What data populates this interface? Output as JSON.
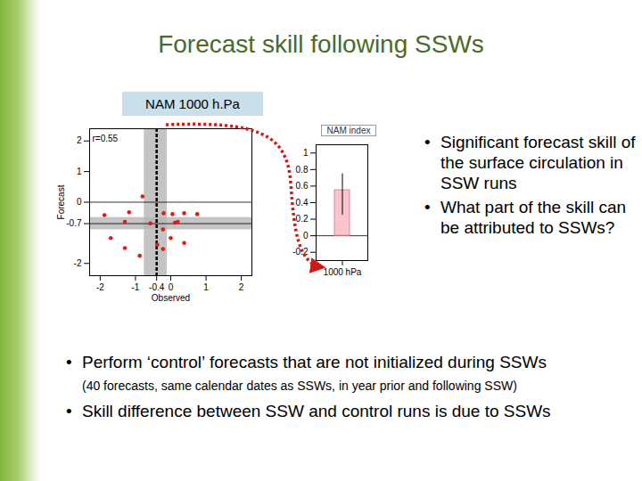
{
  "title": "Forecast skill following SSWs",
  "panel_label": "NAM 1000 h.Pa",
  "bullets_right": [
    "Significant forecast skill of the surface circulation in SSW runs",
    "What part of the skill can be attributed to SSWs?"
  ],
  "bullets_bottom": [
    {
      "text": "Perform ‘control’ forecasts that are not initialized during SSWs",
      "note": "(40 forecasts, same calendar dates as SSWs, in year prior and following SSW)"
    },
    {
      "text": "Skill difference between SSW and control runs is due to SSWs"
    }
  ],
  "chart_data": [
    {
      "type": "scatter",
      "x_label": "Observed",
      "y_label": "Forecast",
      "annotation": "r=0.55",
      "x": [
        -0.8,
        -1.88,
        -1.18,
        -1.3,
        -0.2,
        0.05,
        0.38,
        0.2,
        0.75,
        -0.58,
        -0.22,
        0.12,
        -1.7,
        -1.3,
        -0.38,
        0,
        0.38,
        -0.22,
        -0.88
      ],
      "y": [
        0.19,
        -0.42,
        -0.33,
        -0.64,
        -0.36,
        -0.39,
        -0.36,
        -0.64,
        -0.39,
        -0.69,
        -0.89,
        -0.67,
        -1.17,
        -1.5,
        -1.39,
        -1.17,
        -1.33,
        -1.53,
        -1.75
      ],
      "color": "#e01b1b",
      "marker": "circle",
      "xlim": [
        -2.3,
        2.3
      ],
      "ylim": [
        -2.4,
        2.4
      ],
      "xticks": [
        -2,
        -1,
        -0.4,
        0,
        1,
        2
      ],
      "yticks": [
        -2,
        -0.7,
        0,
        1,
        2
      ],
      "observed_mean": -0.4,
      "observed_mean_range": [
        -0.75,
        -0.1
      ],
      "forecast_mean": -0.7,
      "forecast_mean_range": [
        -0.9,
        -0.5
      ]
    },
    {
      "type": "bar",
      "title": "NAM index",
      "categories": [
        "1000 hPa"
      ],
      "values": [
        0.55
      ],
      "error_low": [
        0.25
      ],
      "error_high": [
        0.75
      ],
      "color": "#f9c4cc",
      "ylim": [
        -0.3,
        1.1
      ],
      "yticks": [
        -0.2,
        0,
        0.2,
        0.4,
        0.6,
        0.8,
        1
      ]
    }
  ]
}
